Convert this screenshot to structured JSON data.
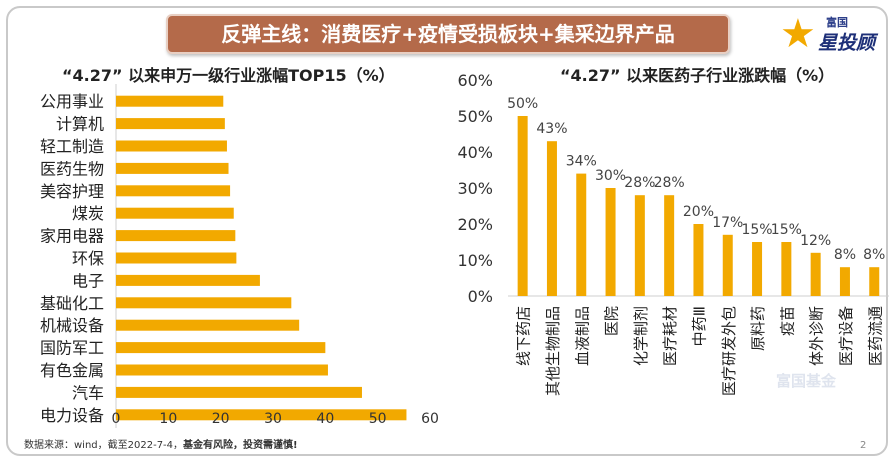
{
  "banner": {
    "title": "反弹主线：消费医疗+疫情受损板块+集采边界产品"
  },
  "logo": {
    "top": "富国",
    "bottom": "星投顾",
    "icon": "star-icon"
  },
  "watermark": {
    "text": "富国基金"
  },
  "footer": {
    "source": "数据来源：wind，截至2022-7-4，",
    "warning": "基金有风险，投资需谨慎!"
  },
  "page_number": "2",
  "colors": {
    "bar": "#f2a900",
    "banner": "#b46a4a",
    "text": "#222222"
  },
  "chart_data": [
    {
      "type": "bar",
      "orientation": "horizontal",
      "title": "“4.27” 以来申万一级行业涨幅TOP15（%）",
      "categories": [
        "公用事业",
        "计算机",
        "轻工制造",
        "医药生物",
        "美容护理",
        "煤炭",
        "家用电器",
        "环保",
        "电子",
        "基础化工",
        "机械设备",
        "国防军工",
        "有色金属",
        "汽车",
        "电力设备"
      ],
      "values": [
        20.5,
        20.8,
        21.2,
        21.5,
        21.8,
        22.5,
        22.8,
        23.0,
        27.5,
        33.5,
        35.0,
        40.0,
        40.5,
        47.0,
        55.5
      ],
      "xlim": [
        0,
        60
      ],
      "xticks": [
        "0",
        "10",
        "20",
        "30",
        "40",
        "50",
        "60"
      ],
      "grid": false
    },
    {
      "type": "bar",
      "orientation": "vertical",
      "title": "“4.27” 以来医药子行业涨跌幅（%）",
      "categories": [
        "线下药店",
        "其他生物制品",
        "血液制品",
        "医院",
        "化学制剂",
        "医疗耗材",
        "中药Ⅲ",
        "医疗研发外包",
        "原料药",
        "疫苗",
        "体外诊断",
        "医疗设备",
        "医药流通"
      ],
      "values": [
        50,
        43,
        34,
        30,
        28,
        28,
        20,
        17,
        15,
        15,
        12,
        8,
        8
      ],
      "data_labels": [
        "50%",
        "43%",
        "34%",
        "30%",
        "28%",
        "28%",
        "20%",
        "17%",
        "15%",
        "15%",
        "12%",
        "8%",
        "8%"
      ],
      "ylim": [
        0,
        60
      ],
      "yticks": [
        "0%",
        "10%",
        "20%",
        "30%",
        "40%",
        "50%",
        "60%"
      ],
      "grid": false
    }
  ]
}
